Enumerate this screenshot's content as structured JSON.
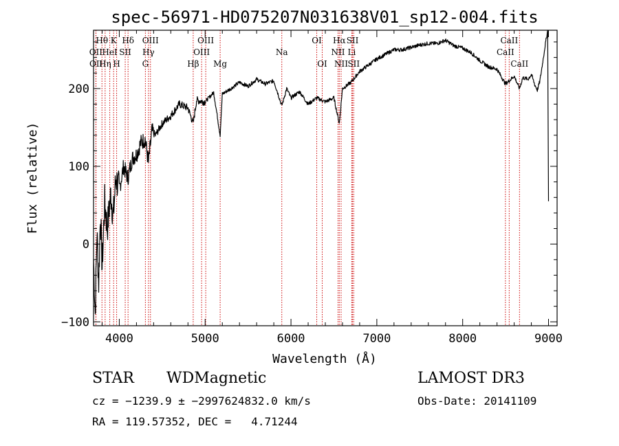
{
  "chart_data": {
    "type": "line",
    "title": "spec-56971-HD075207N031638V01_sp12-004.fits",
    "xlabel": "Wavelength (Å)",
    "ylabel": "Flux (relative)",
    "xlim": [
      3700,
      9100
    ],
    "ylim": [
      -105,
      275
    ],
    "xticks": [
      4000,
      5000,
      6000,
      7000,
      8000,
      9000
    ],
    "yticks": [
      -100,
      0,
      100,
      200
    ],
    "series": [
      {
        "name": "flux",
        "x": [
          3700,
          3720,
          3740,
          3760,
          3780,
          3800,
          3830,
          3860,
          3900,
          3930,
          3960,
          4000,
          4050,
          4100,
          4150,
          4200,
          4250,
          4300,
          4340,
          4380,
          4420,
          4500,
          4600,
          4700,
          4800,
          4861,
          4900,
          5000,
          5100,
          5175,
          5200,
          5300,
          5400,
          5500,
          5600,
          5700,
          5800,
          5893,
          5950,
          6000,
          6100,
          6200,
          6300,
          6400,
          6500,
          6563,
          6600,
          6700,
          6800,
          6900,
          7000,
          7100,
          7200,
          7300,
          7400,
          7500,
          7600,
          7700,
          7800,
          7900,
          8000,
          8100,
          8200,
          8300,
          8400,
          8498,
          8542,
          8600,
          8662,
          8700,
          8760,
          8800,
          8840,
          8870,
          8900,
          8930,
          8960,
          8990,
          9000
        ],
        "y": [
          -20,
          -90,
          15,
          -50,
          40,
          -30,
          55,
          20,
          65,
          35,
          85,
          70,
          100,
          85,
          110,
          115,
          130,
          135,
          105,
          145,
          140,
          155,
          165,
          180,
          175,
          155,
          185,
          183,
          195,
          140,
          193,
          200,
          208,
          203,
          212,
          206,
          210,
          178,
          200,
          188,
          196,
          180,
          188,
          183,
          188,
          155,
          200,
          208,
          222,
          230,
          238,
          244,
          250,
          250,
          253,
          256,
          258,
          258,
          262,
          255,
          252,
          246,
          236,
          228,
          225,
          206,
          210,
          216,
          200,
          214,
          212,
          218,
          205,
          198,
          210,
          232,
          255,
          275,
          55
        ]
      }
    ],
    "lines": [
      {
        "label": "Hθ",
        "x": 3798,
        "row": 1
      },
      {
        "label": "OII",
        "x": 3727,
        "row": 2
      },
      {
        "label": "OII",
        "x": 3729,
        "row": 3
      },
      {
        "label": "Hη",
        "x": 3835,
        "row": 3
      },
      {
        "label": "HeI",
        "x": 3889,
        "row": 2
      },
      {
        "label": "K",
        "x": 3934,
        "row": 1
      },
      {
        "label": "SII",
        "x": 4069,
        "row": 2
      },
      {
        "label": "H",
        "x": 3969,
        "row": 3
      },
      {
        "label": "Hδ",
        "x": 4102,
        "row": 1
      },
      {
        "label": "OIII",
        "x": 4363,
        "row": 1
      },
      {
        "label": "Hγ",
        "x": 4340,
        "row": 2
      },
      {
        "label": "G",
        "x": 4304,
        "row": 3
      },
      {
        "label": "Hβ",
        "x": 4861,
        "row": 3
      },
      {
        "label": "OIII",
        "x": 5007,
        "row": 1
      },
      {
        "label": "OIII",
        "x": 4959,
        "row": 2
      },
      {
        "label": "Mg",
        "x": 5175,
        "row": 3
      },
      {
        "label": "Na",
        "x": 5893,
        "row": 2
      },
      {
        "label": "OI",
        "x": 6300,
        "row": 1
      },
      {
        "label": "OI",
        "x": 6364,
        "row": 3
      },
      {
        "label": "Hα",
        "x": 6563,
        "row": 1
      },
      {
        "label": "NII",
        "x": 6548,
        "row": 2
      },
      {
        "label": "NII",
        "x": 6584,
        "row": 3
      },
      {
        "label": "SII",
        "x": 6717,
        "row": 1
      },
      {
        "label": "Li",
        "x": 6708,
        "row": 2
      },
      {
        "label": "SII",
        "x": 6731,
        "row": 3
      },
      {
        "label": "CaII",
        "x": 8542,
        "row": 1
      },
      {
        "label": "CaII",
        "x": 8498,
        "row": 2
      },
      {
        "label": "CaII",
        "x": 8662,
        "row": 3
      }
    ],
    "line_color": "#cc0000",
    "grid": false
  },
  "info": {
    "object_type": "STAR",
    "subclass": "WDMagnetic",
    "survey": "LAMOST DR3",
    "cz": "cz = −1239.9 ± −2997624832.0 km/s",
    "obs_date": "Obs-Date: 20141109",
    "radec": "RA = 119.57352, DEC =   4.71244"
  }
}
